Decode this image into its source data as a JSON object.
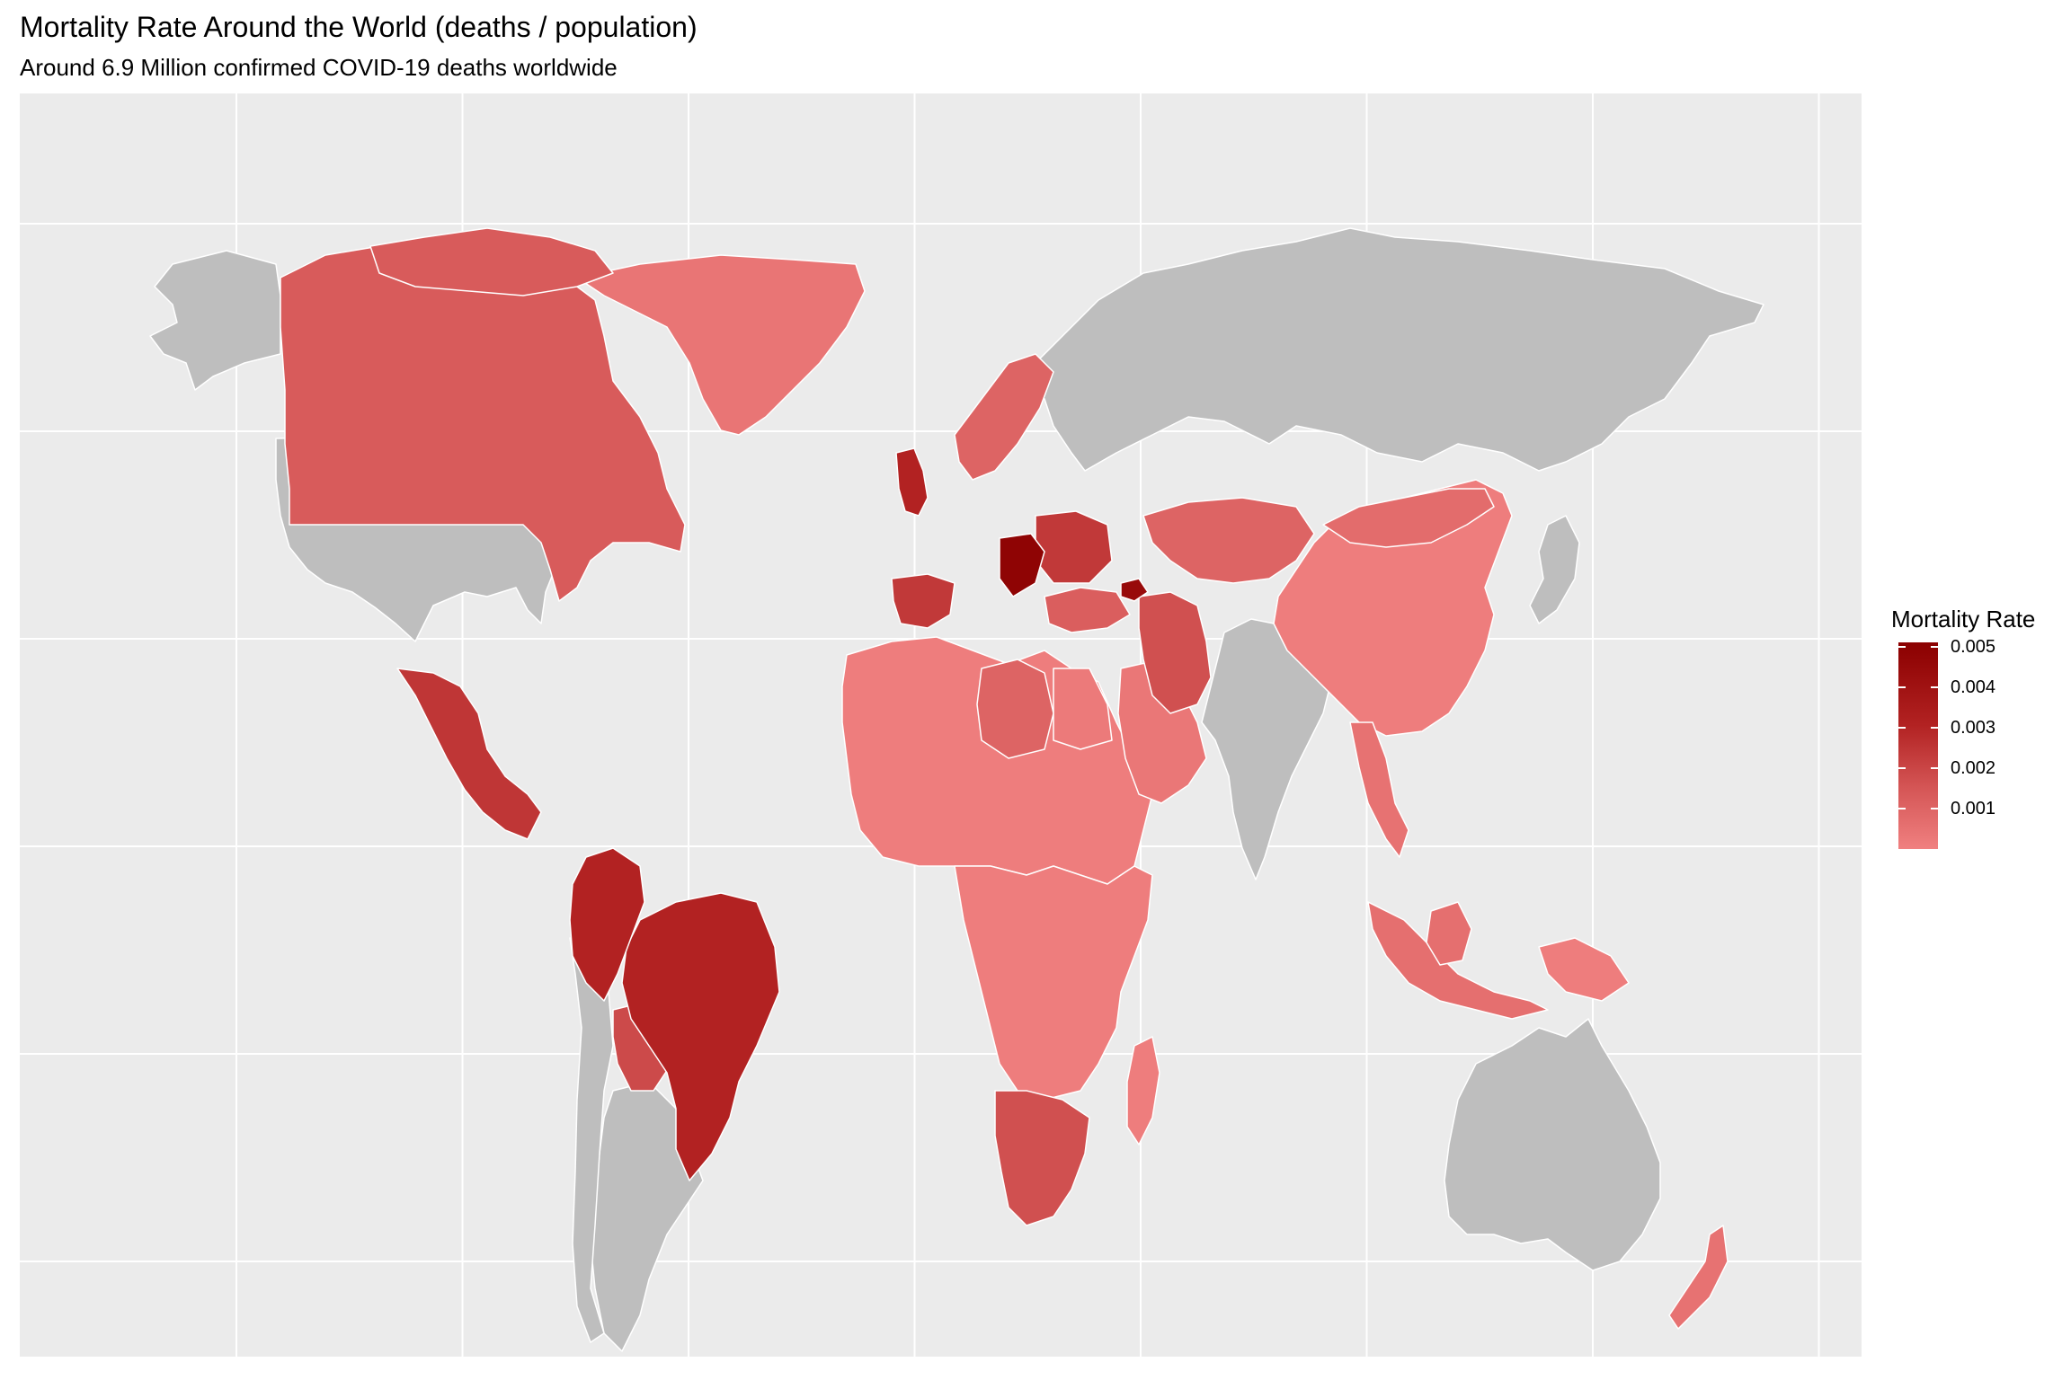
{
  "title": "Mortality Rate Around the World (deaths / population)",
  "subtitle": "Around 6.9 Million confirmed COVID-19 deaths worldwide",
  "colors": {
    "panel_background": "#ebebeb",
    "gridline": "#ffffff",
    "no_data": "#bebebe",
    "scale_low": "#f08080",
    "scale_mid": "#b22222",
    "scale_high": "#8b0000",
    "border": "#ffffff"
  },
  "legend": {
    "title": "Mortality Rate",
    "placement": "right",
    "min": 0.0,
    "max": 0.0051,
    "ticks": [
      {
        "value": 0.005,
        "label": "0.005"
      },
      {
        "value": 0.004,
        "label": "0.004"
      },
      {
        "value": 0.003,
        "label": "0.003"
      },
      {
        "value": 0.002,
        "label": "0.002"
      },
      {
        "value": 0.001,
        "label": "0.001"
      }
    ]
  },
  "map": {
    "projection": "equirectangular",
    "lon_range": [
      -180,
      180
    ],
    "lat_range": [
      -56,
      84
    ],
    "grid": true,
    "axis_labels": false,
    "regions": [
      {
        "name": "Canada",
        "rate": 0.0013
      },
      {
        "name": "Greenland",
        "rate": 0.0004
      },
      {
        "name": "Mexico",
        "rate": 0.0026
      },
      {
        "name": "Brazil",
        "rate": 0.0033
      },
      {
        "name": "Peru",
        "rate": 0.0033
      },
      {
        "name": "Colombia",
        "rate": 0.0028
      },
      {
        "name": "Bolivia",
        "rate": 0.0019
      },
      {
        "name": "Venezuela",
        "rate": 0.0002
      },
      {
        "name": "United Kingdom",
        "rate": 0.0033
      },
      {
        "name": "Spain",
        "rate": 0.0025
      },
      {
        "name": "Hungary",
        "rate": 0.0049
      },
      {
        "name": "Romania",
        "rate": 0.0035
      },
      {
        "name": "Ukraine",
        "rate": 0.0025
      },
      {
        "name": "Georgia",
        "rate": 0.0045
      },
      {
        "name": "Finland",
        "rate": 0.0016
      },
      {
        "name": "Norway",
        "rate": 0.001
      },
      {
        "name": "Turkey",
        "rate": 0.0012
      },
      {
        "name": "Iran",
        "rate": 0.0017
      },
      {
        "name": "Kazakhstan",
        "rate": 0.001
      },
      {
        "name": "Mongolia",
        "rate": 0.0007
      },
      {
        "name": "China",
        "rate": 0.0001
      },
      {
        "name": "Myanmar",
        "rate": 0.0004
      },
      {
        "name": "Thailand",
        "rate": 0.0005
      },
      {
        "name": "Indonesia",
        "rate": 0.0006
      },
      {
        "name": "Papua New Guinea",
        "rate": 0.0001
      },
      {
        "name": "New Zealand",
        "rate": 0.0005
      },
      {
        "name": "South Africa",
        "rate": 0.0017
      },
      {
        "name": "Namibia",
        "rate": 0.0016
      },
      {
        "name": "Madagascar",
        "rate": 0.0001
      },
      {
        "name": "Libya",
        "rate": 0.001
      },
      {
        "name": "Egypt",
        "rate": 0.0002
      },
      {
        "name": "Saudi Arabia",
        "rate": 0.0003
      },
      {
        "name": "Algeria",
        "rate": 0.0001
      },
      {
        "name": "DR Congo",
        "rate": 0.0001
      },
      {
        "name": "United States",
        "rate": null
      },
      {
        "name": "Russia",
        "rate": null
      },
      {
        "name": "India",
        "rate": null
      },
      {
        "name": "Australia",
        "rate": null
      },
      {
        "name": "Argentina",
        "rate": null
      },
      {
        "name": "Chile",
        "rate": null
      },
      {
        "name": "Japan",
        "rate": null
      },
      {
        "name": "Alaska",
        "rate": null
      }
    ]
  }
}
